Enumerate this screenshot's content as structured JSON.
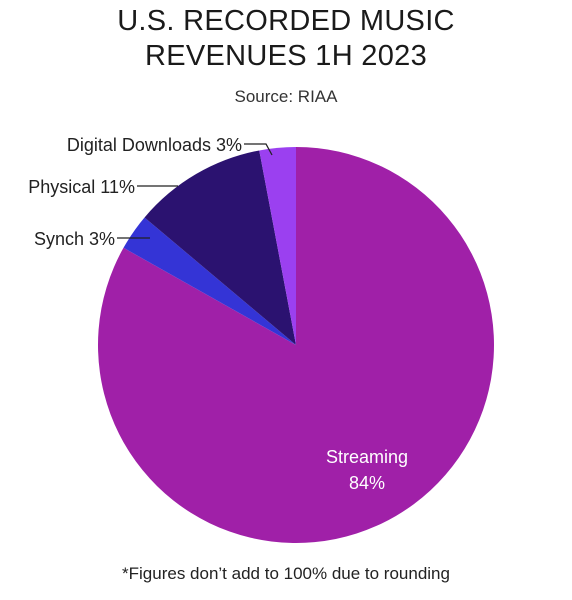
{
  "title_line1": "U.S. RECORDED MUSIC",
  "title_line2": "REVENUES 1H 2023",
  "subtitle": "Source: RIAA",
  "footnote": "*Figures don’t add to 100% due to rounding",
  "chart_data": {
    "type": "pie",
    "title": "U.S. RECORDED MUSIC REVENUES 1H 2023",
    "subtitle": "Source: RIAA",
    "start": "12 o'clock, clockwise",
    "slices": [
      {
        "label": "Streaming",
        "value_label": "84%",
        "value": 84,
        "color": "#a020a8"
      },
      {
        "label": "Synch",
        "value_label": "3%",
        "value": 3,
        "color": "#3434d6"
      },
      {
        "label": "Physical",
        "value_label": "11%",
        "value": 11,
        "color": "#2b1270"
      },
      {
        "label": "Digital Downloads",
        "value_label": "3%",
        "value": 3,
        "color": "#9b40f0"
      }
    ]
  }
}
